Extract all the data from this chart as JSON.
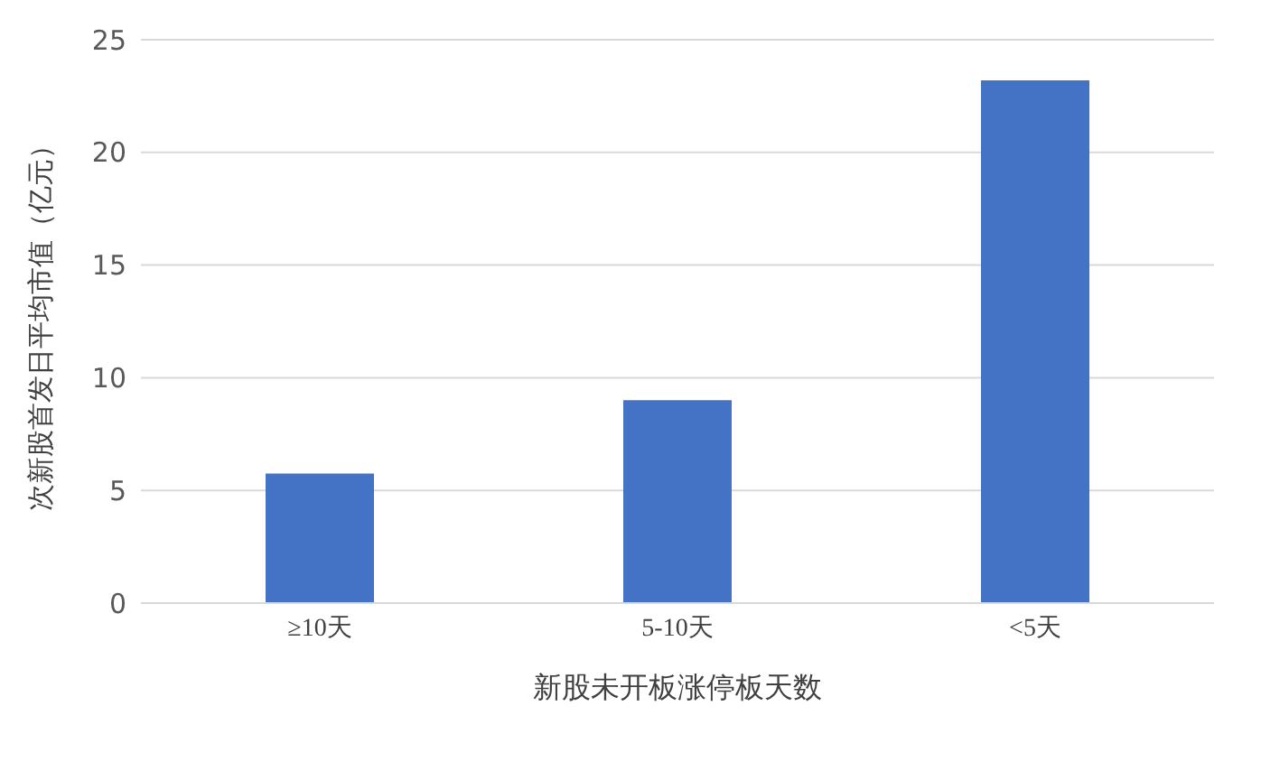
{
  "chart_data": {
    "type": "bar",
    "categories": [
      "≥10天",
      "5-10天",
      "<5天"
    ],
    "values": [
      5.75,
      9,
      23.2
    ],
    "color": "#4472c4",
    "ylim": [
      0,
      25
    ],
    "yticks": [
      0,
      5,
      10,
      15,
      20,
      25
    ],
    "grid": "y",
    "xlabel": "新股未开板涨停板天数",
    "ylabel": "次新股首发日平均市值（亿元）"
  }
}
